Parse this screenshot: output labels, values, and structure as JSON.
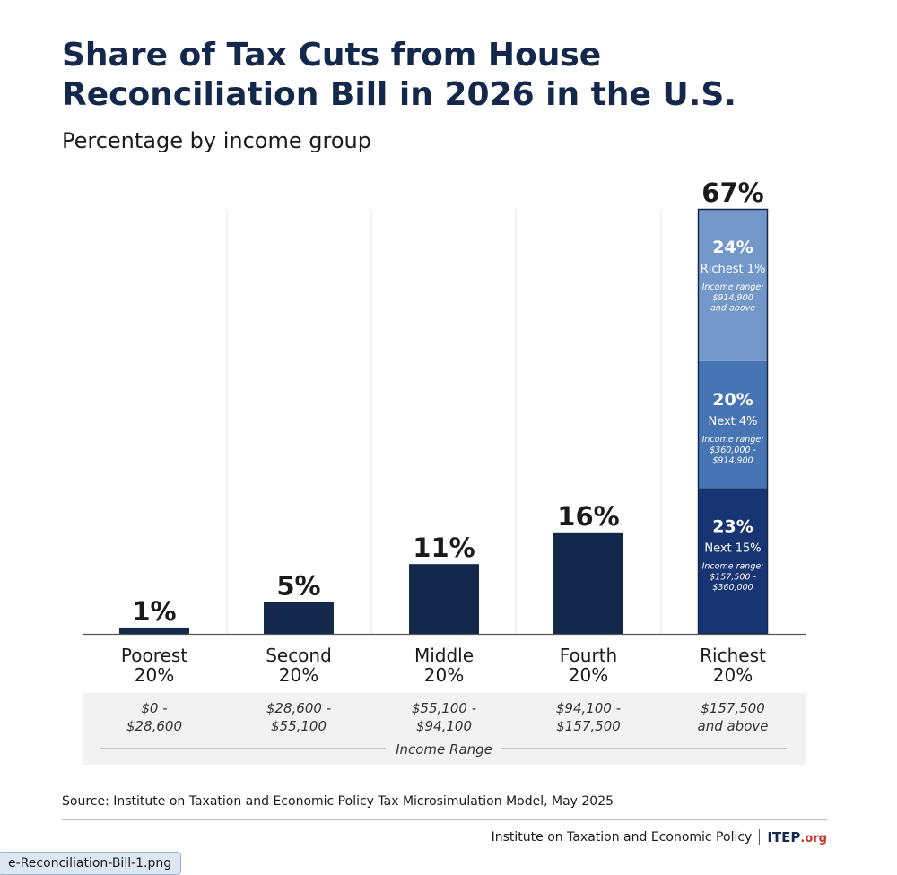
{
  "title": "Share of Tax Cuts from House Reconciliation Bill in 2026 in the U.S.",
  "subtitle": "Percentage by income group",
  "chart_data": {
    "type": "bar",
    "title": "Share of Tax Cuts from House Reconciliation Bill in 2026 in the U.S.",
    "subtitle": "Percentage by income group",
    "categories": [
      "Poorest 20%",
      "Second 20%",
      "Middle 20%",
      "Fourth 20%",
      "Richest 20%"
    ],
    "category_lines": [
      [
        "Poorest",
        "20%"
      ],
      [
        "Second",
        "20%"
      ],
      [
        "Middle",
        "20%"
      ],
      [
        "Fourth",
        "20%"
      ],
      [
        "Richest",
        "20%"
      ]
    ],
    "values": [
      1,
      5,
      11,
      16,
      67
    ],
    "value_labels": [
      "1%",
      "5%",
      "11%",
      "16%",
      "67%"
    ],
    "income_ranges": [
      [
        "$0 -",
        "$28,600"
      ],
      [
        "$28,600 -",
        "$55,100"
      ],
      [
        "$55,100 -",
        "$94,100"
      ],
      [
        "$94,100 -",
        "$157,500"
      ],
      [
        "$157,500",
        "and above"
      ]
    ],
    "income_range_label": "Income Range",
    "ylim": [
      0,
      67
    ],
    "grid": true,
    "richest_breakdown": [
      {
        "value": 23,
        "label": "23%",
        "group": "Next 15%",
        "range_title": "Income range:",
        "range_lines": [
          "$157,500 -",
          "$360,000"
        ],
        "color": "#173573"
      },
      {
        "value": 20,
        "label": "20%",
        "group": "Next 4%",
        "range_title": "Income range:",
        "range_lines": [
          "$360,000 -",
          "$914,900"
        ],
        "color": "#4774b3"
      },
      {
        "value": 24,
        "label": "24%",
        "group": "Richest 1%",
        "range_title": "Income range:",
        "range_lines": [
          "$914,900",
          "and above"
        ],
        "color": "#7397c8"
      }
    ]
  },
  "colors": {
    "bar": "#14284b",
    "title": "#14284b",
    "range_band": "#f2f2f2",
    "grid": "#e6e6e6"
  },
  "source": "Source: Institute on Taxation and Economic Policy Tax Microsimulation Model, May 2025",
  "footer": {
    "org": "Institute on Taxation and Economic Policy",
    "logo": "ITEP",
    "logo_suffix": ".org"
  },
  "file_tab": "e-Reconciliation-Bill-1.png"
}
